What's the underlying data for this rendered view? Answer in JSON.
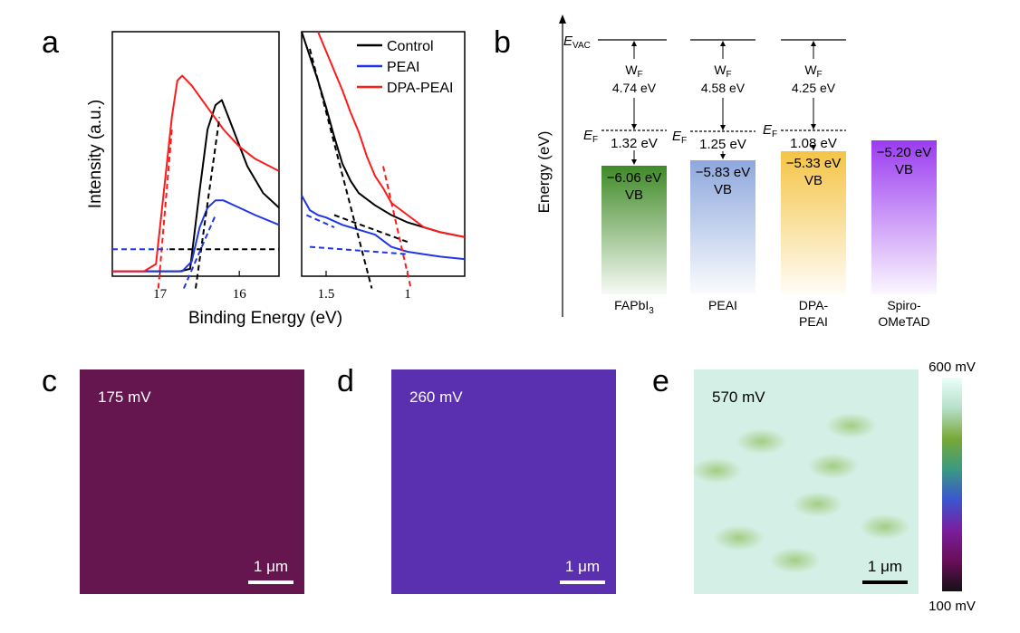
{
  "panels": {
    "a": "a",
    "b": "b",
    "c": "c",
    "d": "d",
    "e": "e"
  },
  "chart_data": [
    {
      "type": "line",
      "panel": "a-left",
      "xlabel": "Binding Energy (eV)",
      "ylabel": "Intensity (a.u.)",
      "xlim": [
        17.6,
        15.5
      ],
      "ylim": [
        0,
        1.0
      ],
      "x_ticks": [
        17,
        16
      ],
      "x_tick_labels": [
        "17",
        "16"
      ],
      "series": [
        {
          "name": "Control",
          "color": "#000000",
          "x": [
            17.6,
            16.9,
            16.75,
            16.62,
            16.5,
            16.4,
            16.3,
            16.22,
            16.1,
            15.9,
            15.7,
            15.5
          ],
          "values": [
            0.02,
            0.02,
            0.02,
            0.03,
            0.35,
            0.6,
            0.7,
            0.72,
            0.62,
            0.45,
            0.34,
            0.28
          ]
        },
        {
          "name": "PEAI",
          "color": "#1f36e8",
          "x": [
            17.6,
            16.9,
            16.72,
            16.6,
            16.5,
            16.4,
            16.3,
            16.2,
            16.0,
            15.8,
            15.5
          ],
          "values": [
            0.02,
            0.02,
            0.02,
            0.06,
            0.2,
            0.28,
            0.31,
            0.31,
            0.28,
            0.25,
            0.21
          ]
        },
        {
          "name": "DPA-PEAI",
          "color": "#ff1a1a",
          "x": [
            17.6,
            17.2,
            17.05,
            16.95,
            16.85,
            16.78,
            16.72,
            16.6,
            16.4,
            16.2,
            16.0,
            15.8,
            15.5
          ],
          "values": [
            0.02,
            0.02,
            0.05,
            0.35,
            0.65,
            0.8,
            0.82,
            0.78,
            0.69,
            0.6,
            0.53,
            0.48,
            0.43
          ]
        }
      ]
    },
    {
      "type": "line",
      "panel": "a-right",
      "xlim": [
        1.65,
        0.65
      ],
      "ylim": [
        0,
        1.0
      ],
      "x_ticks": [
        1.5,
        1
      ],
      "x_tick_labels": [
        "1.5",
        "1"
      ],
      "legend": [
        "Control",
        "PEAI",
        "DPA-PEAI"
      ],
      "legend_position": "top-right",
      "series": [
        {
          "name": "Control",
          "color": "#000000",
          "x": [
            1.65,
            1.6,
            1.55,
            1.5,
            1.45,
            1.4,
            1.35,
            1.3,
            1.2,
            1.1,
            1.0,
            0.9,
            0.8,
            0.65
          ],
          "values": [
            1.0,
            0.9,
            0.8,
            0.69,
            0.57,
            0.46,
            0.39,
            0.34,
            0.29,
            0.25,
            0.22,
            0.2,
            0.18,
            0.16
          ]
        },
        {
          "name": "PEAI",
          "color": "#1f36e8",
          "x": [
            1.65,
            1.6,
            1.55,
            1.5,
            1.4,
            1.3,
            1.2,
            1.1,
            1.0,
            0.9,
            0.8,
            0.65
          ],
          "values": [
            0.33,
            0.27,
            0.25,
            0.24,
            0.21,
            0.19,
            0.17,
            0.12,
            0.1,
            0.09,
            0.08,
            0.07
          ]
        },
        {
          "name": "DPA-PEAI",
          "color": "#ff1a1a",
          "x": [
            1.55,
            1.5,
            1.45,
            1.4,
            1.35,
            1.3,
            1.25,
            1.2,
            1.15,
            1.1,
            1.0,
            0.9,
            0.8,
            0.65
          ],
          "values": [
            1.0,
            0.92,
            0.84,
            0.76,
            0.67,
            0.59,
            0.49,
            0.41,
            0.36,
            0.3,
            0.25,
            0.2,
            0.18,
            0.16
          ]
        }
      ]
    }
  ],
  "band_diagram": {
    "ylabel": "Energy (eV)",
    "evac": "E",
    "evac_sub": "VAC",
    "ef": "E",
    "ef_sub": "F",
    "wf": "W",
    "wf_sub": "F",
    "vb_label": "VB",
    "columns": [
      {
        "name": "FAPbI",
        "name_sub": "3",
        "wf_value": "4.74 eV",
        "gap": "1.32 eV",
        "vb": "−6.06 eV",
        "color": "#3f8a26"
      },
      {
        "name": "PEAI",
        "name_sub": "",
        "wf_value": "4.58 eV",
        "gap": "1.25 eV",
        "vb": "−5.83 eV",
        "color": "#8ea8dd"
      },
      {
        "name": "DPA-",
        "name2": "PEAI",
        "wf_value": "4.25 eV",
        "gap": "1.08 eV",
        "vb": "−5.33 eV",
        "color": "#f5c445"
      },
      {
        "name": "Spiro-",
        "name2": "OMeTAD",
        "vb": "−5.20 eV",
        "color": "#9b3cf0"
      }
    ]
  },
  "maps": [
    {
      "panel": "c",
      "value": "175 mV",
      "color": "#66164f",
      "scale": "1 μm"
    },
    {
      "panel": "d",
      "value": "260 mV",
      "color": "#5a2fb0",
      "scale": "1 μm"
    },
    {
      "panel": "e",
      "value": "570 mV",
      "color": "#d4efe5",
      "scale": "1 μm"
    }
  ],
  "colorbar": {
    "max": "600 mV",
    "min": "100 mV",
    "colors": [
      "#eafffb",
      "#b6e0c8",
      "#79a837",
      "#3a9a82",
      "#3c55cf",
      "#7a1e9e",
      "#6a0e58",
      "#151015"
    ]
  }
}
